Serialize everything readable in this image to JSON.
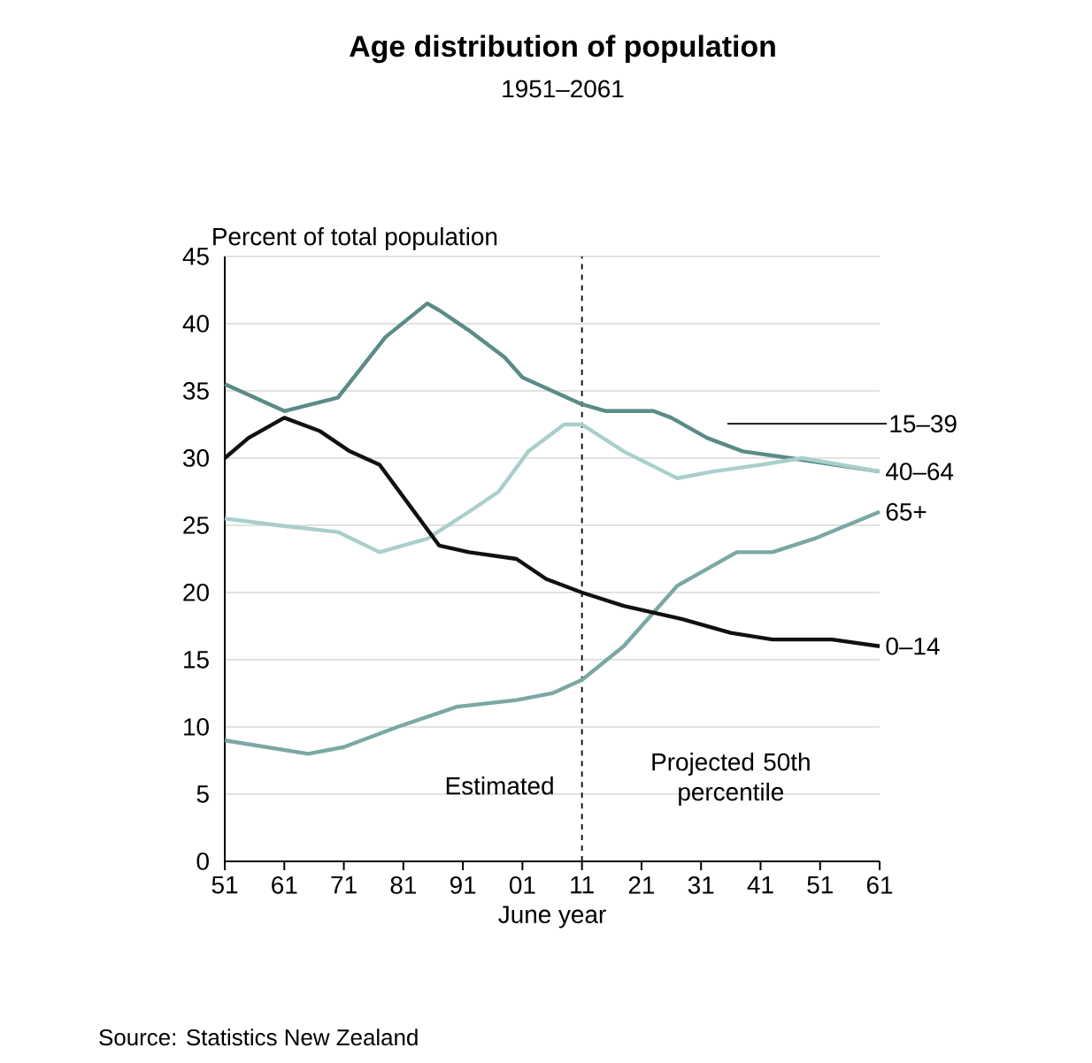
{
  "chart_data": {
    "type": "line",
    "title": "Age distribution of population",
    "subtitle": "1951–2061",
    "ylabel": "Percent of total population",
    "xlabel": "June year",
    "xlim": [
      1951,
      2061
    ],
    "ylim": [
      0,
      45
    ],
    "xticks": [
      {
        "value": 1951,
        "label": "51"
      },
      {
        "value": 1961,
        "label": "61"
      },
      {
        "value": 1971,
        "label": "71"
      },
      {
        "value": 1981,
        "label": "81"
      },
      {
        "value": 1991,
        "label": "91"
      },
      {
        "value": 2001,
        "label": "01"
      },
      {
        "value": 2011,
        "label": "11"
      },
      {
        "value": 2021,
        "label": "21"
      },
      {
        "value": 2031,
        "label": "31"
      },
      {
        "value": 2041,
        "label": "41"
      },
      {
        "value": 2051,
        "label": "51"
      },
      {
        "value": 2061,
        "label": "61"
      }
    ],
    "yticks": [
      0,
      5,
      10,
      15,
      20,
      25,
      30,
      35,
      40,
      45
    ],
    "grid": "y",
    "series": [
      {
        "name": "15–39",
        "color": "#5a8c87",
        "x": [
          1951,
          1961,
          1970,
          1978,
          1985,
          1987,
          1992,
          1998,
          2001,
          2006,
          2011,
          2015,
          2023,
          2026,
          2032,
          2038,
          2046,
          2061
        ],
        "values": [
          35.5,
          33.5,
          34.5,
          39,
          41.5,
          41,
          39.5,
          37.5,
          36,
          35,
          34,
          33.5,
          33.5,
          33,
          31.5,
          30.5,
          30,
          29
        ]
      },
      {
        "name": "40–64",
        "color": "#a9cfcc",
        "x": [
          1951,
          1960,
          1970,
          1977,
          1985,
          1992,
          1997,
          2002,
          2008,
          2011,
          2018,
          2027,
          2033,
          2041,
          2048,
          2061
        ],
        "values": [
          25.5,
          25,
          24.5,
          23,
          24,
          26,
          27.5,
          30.5,
          32.5,
          32.5,
          30.5,
          28.5,
          29,
          29.5,
          30,
          29
        ]
      },
      {
        "name": "65+",
        "color": "#7aa8a4",
        "x": [
          1951,
          1965,
          1971,
          1980,
          1990,
          2000,
          2006,
          2011,
          2018,
          2027,
          2037,
          2043,
          2050,
          2061
        ],
        "values": [
          9,
          8,
          8.5,
          10,
          11.5,
          12,
          12.5,
          13.5,
          16,
          20.5,
          23,
          23,
          24,
          26
        ]
      },
      {
        "name": "0–14",
        "color": "#111111",
        "x": [
          1951,
          1955,
          1961,
          1967,
          1972,
          1977,
          1982,
          1987,
          1992,
          2000,
          2005,
          2011,
          2018,
          2028,
          2036,
          2043,
          2053,
          2061
        ],
        "values": [
          30,
          31.5,
          33,
          32,
          30.5,
          29.5,
          26.5,
          23.5,
          23,
          22.5,
          21,
          20,
          19,
          18,
          17,
          16.5,
          16.5,
          16
        ]
      }
    ],
    "ref_lines": [
      {
        "axis": "x",
        "value": 2011,
        "color": "#000000",
        "line_style": "dashed"
      }
    ],
    "annotations": [
      "Estimated",
      "Projected 50th percentile",
      "Source: Statistics New Zealand"
    ]
  }
}
